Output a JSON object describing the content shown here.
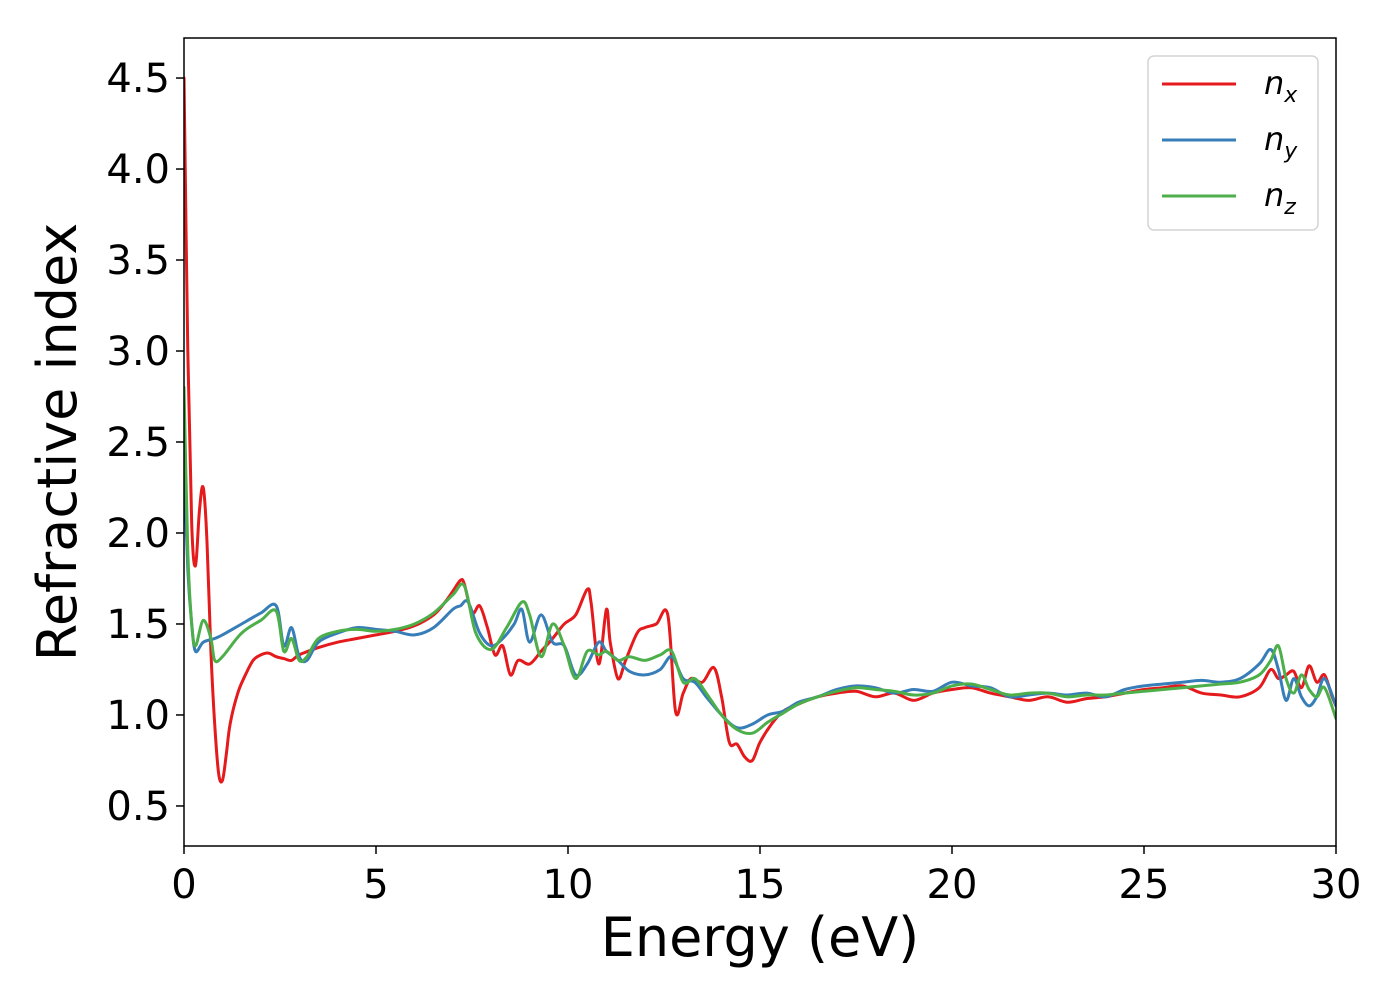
{
  "chart_data": {
    "type": "line",
    "xlabel": "Energy (eV)",
    "ylabel": "Refractive index",
    "xlim": [
      0,
      30
    ],
    "ylim": [
      0.28,
      4.72
    ],
    "xticks": [
      0,
      5,
      10,
      15,
      20,
      25,
      30
    ],
    "xtick_labels": [
      "0",
      "5",
      "10",
      "15",
      "20",
      "25",
      "30"
    ],
    "yticks": [
      0.5,
      1.0,
      1.5,
      2.0,
      2.5,
      3.0,
      3.5,
      4.0,
      4.5
    ],
    "ytick_labels": [
      "0.5",
      "1.0",
      "1.5",
      "2.0",
      "2.5",
      "3.0",
      "3.5",
      "4.0",
      "4.5"
    ],
    "grid": false,
    "legend_position": "top-right",
    "series": [
      {
        "name": "n",
        "subscript": "x",
        "color": "#e41a1c",
        "x": [
          0,
          0.1,
          0.2,
          0.3,
          0.4,
          0.5,
          0.6,
          0.7,
          0.8,
          0.9,
          1.0,
          1.1,
          1.2,
          1.4,
          1.6,
          1.8,
          2.0,
          2.2,
          2.4,
          2.6,
          2.8,
          3.0,
          3.5,
          4.0,
          4.5,
          5.0,
          5.5,
          6.0,
          6.5,
          6.8,
          7.0,
          7.2,
          7.3,
          7.5,
          7.7,
          7.9,
          8.1,
          8.3,
          8.5,
          8.7,
          9.0,
          9.3,
          9.6,
          9.9,
          10.2,
          10.5,
          10.6,
          10.8,
          11.0,
          11.1,
          11.3,
          11.5,
          11.8,
          12.0,
          12.3,
          12.6,
          12.8,
          13.0,
          13.2,
          13.5,
          13.8,
          14.0,
          14.2,
          14.4,
          14.6,
          14.8,
          15.0,
          15.3,
          15.6,
          16.0,
          16.5,
          17.0,
          17.5,
          18.0,
          18.5,
          19.0,
          19.5,
          20.0,
          20.5,
          21.0,
          21.5,
          22.0,
          22.5,
          23.0,
          23.5,
          24.0,
          24.5,
          25.0,
          25.5,
          26.0,
          26.5,
          27.0,
          27.5,
          28.0,
          28.3,
          28.5,
          28.7,
          28.9,
          29.1,
          29.3,
          29.5,
          29.7,
          29.9,
          30.0
        ],
        "values": [
          4.5,
          3.0,
          2.05,
          1.82,
          2.12,
          2.25,
          1.95,
          1.35,
          0.95,
          0.68,
          0.64,
          0.78,
          0.95,
          1.12,
          1.22,
          1.3,
          1.33,
          1.34,
          1.32,
          1.31,
          1.3,
          1.33,
          1.37,
          1.4,
          1.42,
          1.44,
          1.46,
          1.49,
          1.55,
          1.62,
          1.68,
          1.74,
          1.72,
          1.56,
          1.6,
          1.48,
          1.33,
          1.38,
          1.22,
          1.3,
          1.28,
          1.35,
          1.42,
          1.5,
          1.55,
          1.69,
          1.62,
          1.28,
          1.58,
          1.4,
          1.2,
          1.3,
          1.45,
          1.48,
          1.5,
          1.55,
          1.02,
          1.12,
          1.2,
          1.18,
          1.26,
          1.1,
          0.85,
          0.84,
          0.77,
          0.75,
          0.85,
          0.95,
          1.02,
          1.06,
          1.1,
          1.12,
          1.13,
          1.1,
          1.12,
          1.08,
          1.12,
          1.14,
          1.15,
          1.12,
          1.1,
          1.08,
          1.1,
          1.07,
          1.09,
          1.1,
          1.12,
          1.14,
          1.15,
          1.16,
          1.12,
          1.11,
          1.1,
          1.15,
          1.25,
          1.2,
          1.22,
          1.24,
          1.15,
          1.27,
          1.18,
          1.22,
          1.1,
          1.05
        ]
      },
      {
        "name": "n",
        "subscript": "y",
        "color": "#377eb8",
        "x": [
          0,
          0.1,
          0.2,
          0.3,
          0.5,
          0.8,
          1.0,
          1.5,
          2.0,
          2.4,
          2.6,
          2.8,
          3.0,
          3.2,
          3.5,
          4.0,
          4.5,
          5.0,
          5.5,
          6.0,
          6.5,
          7.0,
          7.2,
          7.4,
          7.7,
          8.0,
          8.3,
          8.6,
          8.8,
          9.0,
          9.3,
          9.6,
          9.9,
          10.2,
          10.5,
          10.8,
          11.0,
          11.3,
          11.6,
          12.0,
          12.4,
          12.7,
          13.0,
          13.3,
          13.6,
          14.0,
          14.4,
          14.8,
          15.2,
          15.6,
          16.0,
          16.5,
          17.0,
          17.5,
          18.0,
          18.5,
          19.0,
          19.5,
          20.0,
          20.5,
          21.0,
          21.5,
          22.0,
          22.5,
          23.0,
          23.5,
          24.0,
          24.5,
          25.0,
          25.5,
          26.0,
          26.5,
          27.0,
          27.5,
          28.0,
          28.3,
          28.5,
          28.7,
          28.9,
          29.1,
          29.3,
          29.5,
          29.7,
          30.0
        ],
        "values": [
          2.4,
          1.8,
          1.5,
          1.35,
          1.4,
          1.42,
          1.44,
          1.5,
          1.56,
          1.6,
          1.38,
          1.48,
          1.32,
          1.3,
          1.4,
          1.45,
          1.48,
          1.47,
          1.46,
          1.44,
          1.48,
          1.58,
          1.6,
          1.62,
          1.45,
          1.38,
          1.42,
          1.5,
          1.58,
          1.4,
          1.55,
          1.4,
          1.38,
          1.22,
          1.28,
          1.4,
          1.35,
          1.3,
          1.24,
          1.22,
          1.25,
          1.32,
          1.2,
          1.18,
          1.1,
          1.0,
          0.93,
          0.95,
          1.0,
          1.02,
          1.07,
          1.1,
          1.14,
          1.16,
          1.15,
          1.12,
          1.14,
          1.13,
          1.18,
          1.16,
          1.15,
          1.1,
          1.11,
          1.12,
          1.11,
          1.12,
          1.1,
          1.14,
          1.16,
          1.17,
          1.18,
          1.19,
          1.18,
          1.2,
          1.28,
          1.36,
          1.25,
          1.08,
          1.2,
          1.1,
          1.05,
          1.1,
          1.2,
          1.05
        ]
      },
      {
        "name": "n",
        "subscript": "z",
        "color": "#4daf4a",
        "x": [
          0,
          0.1,
          0.2,
          0.3,
          0.5,
          0.7,
          0.8,
          1.0,
          1.5,
          2.0,
          2.4,
          2.6,
          2.8,
          3.0,
          3.2,
          3.5,
          4.0,
          4.5,
          5.0,
          5.5,
          6.0,
          6.5,
          7.0,
          7.3,
          7.6,
          8.0,
          8.4,
          8.8,
          9.0,
          9.3,
          9.6,
          9.9,
          10.2,
          10.5,
          10.8,
          11.0,
          11.3,
          11.6,
          12.0,
          12.4,
          12.7,
          13.0,
          13.3,
          13.6,
          14.0,
          14.4,
          14.8,
          15.2,
          15.6,
          16.0,
          16.5,
          17.0,
          17.5,
          18.0,
          18.5,
          19.0,
          19.5,
          20.0,
          20.5,
          21.0,
          21.5,
          22.0,
          22.5,
          23.0,
          23.5,
          24.0,
          24.5,
          25.0,
          25.5,
          26.0,
          26.5,
          27.0,
          27.5,
          28.0,
          28.3,
          28.5,
          28.7,
          28.9,
          29.1,
          29.3,
          29.5,
          29.7,
          30.0
        ],
        "values": [
          2.8,
          1.9,
          1.5,
          1.38,
          1.52,
          1.42,
          1.3,
          1.32,
          1.45,
          1.52,
          1.57,
          1.35,
          1.42,
          1.3,
          1.32,
          1.42,
          1.46,
          1.47,
          1.46,
          1.47,
          1.5,
          1.56,
          1.66,
          1.71,
          1.45,
          1.36,
          1.48,
          1.62,
          1.55,
          1.32,
          1.5,
          1.38,
          1.2,
          1.35,
          1.33,
          1.35,
          1.3,
          1.32,
          1.3,
          1.33,
          1.35,
          1.18,
          1.2,
          1.12,
          1.0,
          0.92,
          0.9,
          0.96,
          1.01,
          1.06,
          1.1,
          1.13,
          1.15,
          1.14,
          1.13,
          1.11,
          1.12,
          1.16,
          1.17,
          1.14,
          1.11,
          1.12,
          1.12,
          1.1,
          1.11,
          1.11,
          1.12,
          1.13,
          1.14,
          1.15,
          1.16,
          1.17,
          1.18,
          1.22,
          1.3,
          1.38,
          1.2,
          1.12,
          1.22,
          1.14,
          1.1,
          1.15,
          0.98
        ]
      }
    ]
  }
}
